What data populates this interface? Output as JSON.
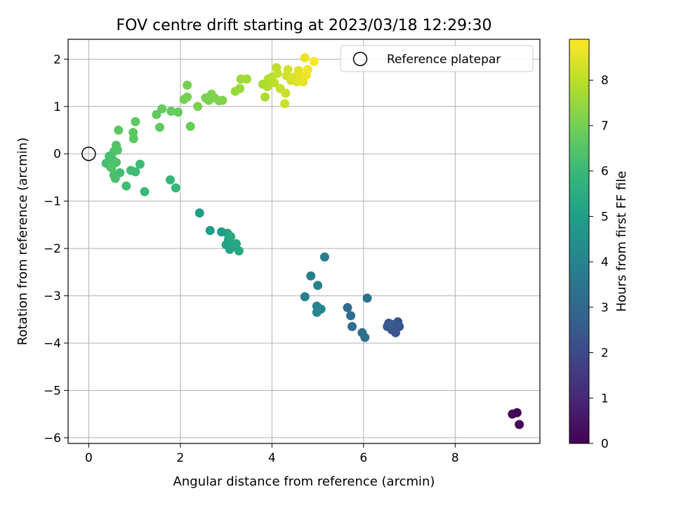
{
  "chart_data": {
    "type": "scatter",
    "title": "FOV centre drift starting at 2023/03/18 12:29:30",
    "xlabel": "Angular distance from reference (arcmin)",
    "ylabel": "Rotation from reference (arcmin)",
    "xlim": [
      -0.45,
      9.85
    ],
    "ylim": [
      -6.12,
      2.42
    ],
    "xticks": [
      0,
      2,
      4,
      6,
      8
    ],
    "xtick_labels": [
      "0",
      "2",
      "4",
      "6",
      "8"
    ],
    "yticks": [
      2,
      1,
      0,
      -1,
      -2,
      -3,
      -4,
      -5,
      -6
    ],
    "ytick_labels": [
      "2",
      "1",
      "0",
      "−1",
      "−2",
      "−3",
      "−4",
      "−5",
      "−6"
    ],
    "grid": true,
    "legend": {
      "location": "top-right",
      "entries": [
        "Reference platepar"
      ]
    },
    "reference_point": {
      "x": 0,
      "y": 0
    },
    "colorbar": {
      "label": "Hours from first FF file",
      "range": [
        0,
        8.9
      ],
      "ticks": [
        0,
        1,
        2,
        3,
        4,
        5,
        6,
        7,
        8
      ],
      "tick_labels": [
        "0",
        "1",
        "2",
        "3",
        "4",
        "5",
        "6",
        "7",
        "8"
      ],
      "colormap": "viridis",
      "stops": [
        "#440154",
        "#482878",
        "#3e4989",
        "#31688e",
        "#26828e",
        "#1f9e89",
        "#35b779",
        "#6ece58",
        "#b5de2b",
        "#fde725"
      ]
    },
    "points": [
      {
        "x": 9.25,
        "y": -5.5,
        "h": 0.05
      },
      {
        "x": 9.35,
        "y": -5.47,
        "h": 0.1
      },
      {
        "x": 9.4,
        "y": -5.72,
        "h": 0.15
      },
      {
        "x": 6.55,
        "y": -3.58,
        "h": 2.2
      },
      {
        "x": 6.58,
        "y": -3.65,
        "h": 2.25
      },
      {
        "x": 6.62,
        "y": -3.72,
        "h": 2.3
      },
      {
        "x": 6.7,
        "y": -3.78,
        "h": 2.35
      },
      {
        "x": 6.75,
        "y": -3.55,
        "h": 2.4
      },
      {
        "x": 6.78,
        "y": -3.65,
        "h": 2.45
      },
      {
        "x": 6.52,
        "y": -3.65,
        "h": 2.5
      },
      {
        "x": 6.6,
        "y": -3.6,
        "h": 2.55
      },
      {
        "x": 5.65,
        "y": -3.25,
        "h": 3.1
      },
      {
        "x": 5.72,
        "y": -3.42,
        "h": 3.15
      },
      {
        "x": 5.75,
        "y": -3.65,
        "h": 3.2
      },
      {
        "x": 5.97,
        "y": -3.78,
        "h": 3.25
      },
      {
        "x": 6.03,
        "y": -3.88,
        "h": 3.3
      },
      {
        "x": 6.08,
        "y": -3.05,
        "h": 3.35
      },
      {
        "x": 5.15,
        "y": -2.18,
        "h": 3.8
      },
      {
        "x": 4.85,
        "y": -2.58,
        "h": 3.85
      },
      {
        "x": 5.0,
        "y": -2.78,
        "h": 3.9
      },
      {
        "x": 4.72,
        "y": -3.02,
        "h": 3.95
      },
      {
        "x": 4.98,
        "y": -3.22,
        "h": 4.0
      },
      {
        "x": 5.07,
        "y": -3.28,
        "h": 4.05
      },
      {
        "x": 4.98,
        "y": -3.35,
        "h": 4.1
      },
      {
        "x": 2.42,
        "y": -1.25,
        "h": 4.9
      },
      {
        "x": 2.65,
        "y": -1.62,
        "h": 4.95
      },
      {
        "x": 2.9,
        "y": -1.65,
        "h": 5.0
      },
      {
        "x": 3.03,
        "y": -1.68,
        "h": 5.05
      },
      {
        "x": 3.05,
        "y": -1.82,
        "h": 5.1
      },
      {
        "x": 3.0,
        "y": -1.92,
        "h": 5.15
      },
      {
        "x": 3.08,
        "y": -2.02,
        "h": 5.2
      },
      {
        "x": 3.15,
        "y": -1.95,
        "h": 5.25
      },
      {
        "x": 3.22,
        "y": -1.9,
        "h": 5.3
      },
      {
        "x": 3.28,
        "y": -2.05,
        "h": 5.35
      },
      {
        "x": 3.1,
        "y": -1.75,
        "h": 5.4
      },
      {
        "x": 1.78,
        "y": -0.55,
        "h": 5.9
      },
      {
        "x": 1.9,
        "y": -0.72,
        "h": 5.95
      },
      {
        "x": 1.22,
        "y": -0.8,
        "h": 6.0
      },
      {
        "x": 1.12,
        "y": -0.22,
        "h": 6.05
      },
      {
        "x": 0.92,
        "y": -0.35,
        "h": 6.1
      },
      {
        "x": 1.02,
        "y": -0.38,
        "h": 6.12
      },
      {
        "x": 0.82,
        "y": -0.68,
        "h": 6.15
      },
      {
        "x": 0.68,
        "y": -0.4,
        "h": 6.18
      },
      {
        "x": 0.38,
        "y": -0.2,
        "h": 6.2
      },
      {
        "x": 0.45,
        "y": -0.05,
        "h": 6.22
      },
      {
        "x": 0.48,
        "y": -0.28,
        "h": 6.25
      },
      {
        "x": 0.55,
        "y": -0.45,
        "h": 6.28
      },
      {
        "x": 0.58,
        "y": -0.52,
        "h": 6.3
      },
      {
        "x": 0.52,
        "y": -0.12,
        "h": 6.32
      },
      {
        "x": 0.6,
        "y": -0.18,
        "h": 6.35
      },
      {
        "x": 0.55,
        "y": 0.05,
        "h": 6.38
      },
      {
        "x": 0.6,
        "y": 0.18,
        "h": 6.4
      },
      {
        "x": 0.63,
        "y": 0.08,
        "h": 6.42
      },
      {
        "x": 0.5,
        "y": -0.3,
        "h": 6.45
      },
      {
        "x": 0.65,
        "y": 0.5,
        "h": 6.6
      },
      {
        "x": 0.98,
        "y": 0.32,
        "h": 6.62
      },
      {
        "x": 0.97,
        "y": 0.45,
        "h": 6.64
      },
      {
        "x": 1.02,
        "y": 0.68,
        "h": 6.66
      },
      {
        "x": 1.55,
        "y": 0.56,
        "h": 6.7
      },
      {
        "x": 1.48,
        "y": 0.83,
        "h": 6.72
      },
      {
        "x": 1.6,
        "y": 0.95,
        "h": 6.74
      },
      {
        "x": 1.8,
        "y": 0.9,
        "h": 6.76
      },
      {
        "x": 1.95,
        "y": 0.88,
        "h": 6.78
      },
      {
        "x": 2.22,
        "y": 0.58,
        "h": 6.8
      },
      {
        "x": 2.08,
        "y": 1.15,
        "h": 7.0
      },
      {
        "x": 2.15,
        "y": 1.2,
        "h": 7.02
      },
      {
        "x": 2.15,
        "y": 1.45,
        "h": 7.04
      },
      {
        "x": 2.38,
        "y": 1.0,
        "h": 7.06
      },
      {
        "x": 2.55,
        "y": 1.18,
        "h": 7.08
      },
      {
        "x": 2.62,
        "y": 1.13,
        "h": 7.1
      },
      {
        "x": 2.68,
        "y": 1.26,
        "h": 7.12
      },
      {
        "x": 2.75,
        "y": 1.18,
        "h": 7.14
      },
      {
        "x": 2.85,
        "y": 1.12,
        "h": 7.16
      },
      {
        "x": 2.92,
        "y": 1.13,
        "h": 7.18
      },
      {
        "x": 3.2,
        "y": 1.32,
        "h": 7.5
      },
      {
        "x": 3.3,
        "y": 1.38,
        "h": 7.55
      },
      {
        "x": 3.32,
        "y": 1.58,
        "h": 7.6
      },
      {
        "x": 3.45,
        "y": 1.58,
        "h": 7.65
      },
      {
        "x": 3.8,
        "y": 1.47,
        "h": 7.75
      },
      {
        "x": 3.85,
        "y": 1.2,
        "h": 7.8
      },
      {
        "x": 3.9,
        "y": 1.42,
        "h": 7.85
      },
      {
        "x": 3.92,
        "y": 1.58,
        "h": 7.9
      },
      {
        "x": 4.0,
        "y": 1.62,
        "h": 7.95
      },
      {
        "x": 4.05,
        "y": 1.5,
        "h": 8.0
      },
      {
        "x": 4.1,
        "y": 1.82,
        "h": 8.05
      },
      {
        "x": 4.12,
        "y": 1.7,
        "h": 8.1
      },
      {
        "x": 4.18,
        "y": 1.38,
        "h": 8.15
      },
      {
        "x": 4.28,
        "y": 1.06,
        "h": 8.2
      },
      {
        "x": 4.3,
        "y": 1.28,
        "h": 8.22
      },
      {
        "x": 4.32,
        "y": 1.65,
        "h": 8.25
      },
      {
        "x": 4.35,
        "y": 1.78,
        "h": 8.3
      },
      {
        "x": 4.42,
        "y": 1.55,
        "h": 8.35
      },
      {
        "x": 4.48,
        "y": 1.62,
        "h": 8.4
      },
      {
        "x": 4.55,
        "y": 1.52,
        "h": 8.45
      },
      {
        "x": 4.58,
        "y": 1.76,
        "h": 8.5
      },
      {
        "x": 4.62,
        "y": 1.6,
        "h": 8.55
      },
      {
        "x": 4.68,
        "y": 1.52,
        "h": 8.6
      },
      {
        "x": 4.72,
        "y": 2.03,
        "h": 8.65
      },
      {
        "x": 4.75,
        "y": 1.66,
        "h": 8.7
      },
      {
        "x": 4.78,
        "y": 1.78,
        "h": 8.75
      },
      {
        "x": 4.92,
        "y": 1.95,
        "h": 8.85
      }
    ]
  }
}
